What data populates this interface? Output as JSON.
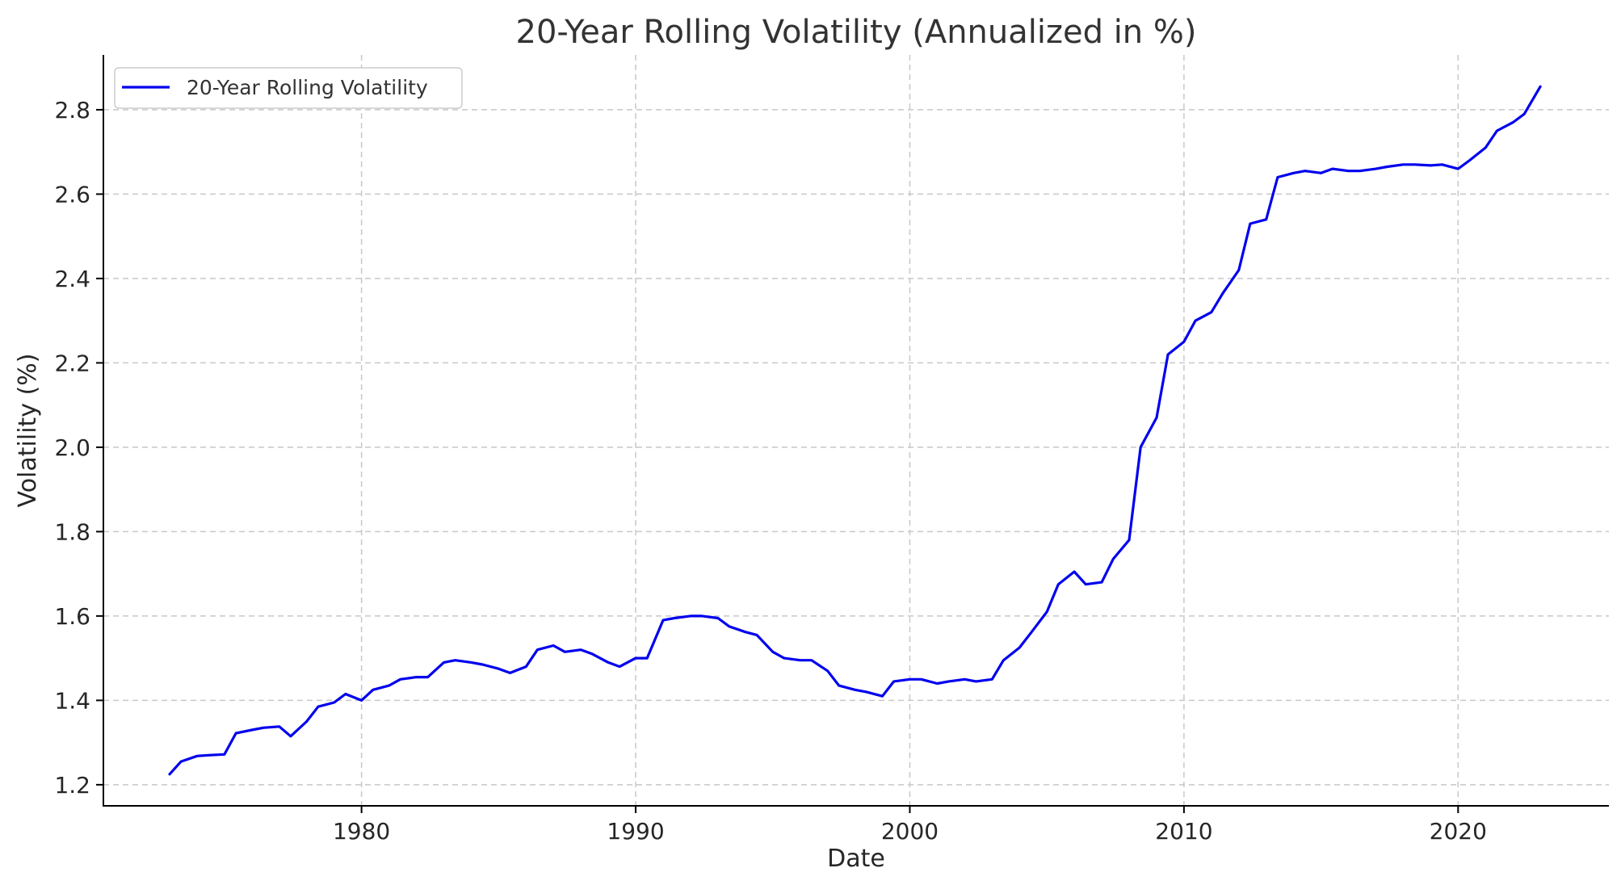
{
  "chart_data": {
    "type": "line",
    "title": "20-Year Rolling Volatility (Annualized in %)",
    "xlabel": "Date",
    "ylabel": "Volatility (%)",
    "x_ticks": [
      "1980",
      "1990",
      "2000",
      "2010",
      "2020"
    ],
    "y_ticks": [
      "1.2",
      "1.4",
      "1.6",
      "1.8",
      "2.0",
      "2.2",
      "2.4",
      "2.6",
      "2.8"
    ],
    "xlim": [
      "1970-08",
      "2025-07"
    ],
    "ylim": [
      1.15,
      2.93
    ],
    "grid": true,
    "legend_placement": "top-left",
    "colors": {
      "series": "#0000ee"
    },
    "series": [
      {
        "name": "20-Year Rolling Volatility",
        "x": [
          "1973-01",
          "1973-06",
          "1974-01",
          "1974-06",
          "1975-01",
          "1975-06",
          "1976-01",
          "1976-06",
          "1977-01",
          "1977-06",
          "1978-01",
          "1978-06",
          "1979-01",
          "1979-06",
          "1980-01",
          "1980-06",
          "1981-01",
          "1981-06",
          "1982-01",
          "1982-06",
          "1983-01",
          "1983-06",
          "1984-01",
          "1984-06",
          "1985-01",
          "1985-06",
          "1986-01",
          "1986-06",
          "1987-01",
          "1987-06",
          "1988-01",
          "1988-06",
          "1989-01",
          "1989-06",
          "1990-01",
          "1990-06",
          "1991-01",
          "1991-06",
          "1992-01",
          "1992-06",
          "1993-01",
          "1993-06",
          "1994-01",
          "1994-06",
          "1995-01",
          "1995-06",
          "1996-01",
          "1996-06",
          "1997-01",
          "1997-06",
          "1998-01",
          "1998-06",
          "1999-01",
          "1999-06",
          "2000-01",
          "2000-06",
          "2001-01",
          "2001-06",
          "2002-01",
          "2002-06",
          "2003-01",
          "2003-06",
          "2004-01",
          "2004-06",
          "2005-01",
          "2005-06",
          "2006-01",
          "2006-06",
          "2007-01",
          "2007-06",
          "2008-01",
          "2008-06",
          "2009-01",
          "2009-06",
          "2010-01",
          "2010-06",
          "2011-01",
          "2011-06",
          "2012-01",
          "2012-06",
          "2013-01",
          "2013-06",
          "2014-01",
          "2014-06",
          "2015-01",
          "2015-06",
          "2016-01",
          "2016-06",
          "2017-01",
          "2017-06",
          "2018-01",
          "2018-06",
          "2019-01",
          "2019-06",
          "2020-01",
          "2020-06",
          "2021-01",
          "2021-06",
          "2022-01",
          "2022-06",
          "2023-01"
        ],
        "values": [
          1.225,
          1.255,
          1.268,
          1.27,
          1.272,
          1.322,
          1.33,
          1.335,
          1.338,
          1.315,
          1.35,
          1.385,
          1.395,
          1.415,
          1.4,
          1.425,
          1.435,
          1.45,
          1.455,
          1.455,
          1.49,
          1.495,
          1.49,
          1.485,
          1.475,
          1.465,
          1.48,
          1.52,
          1.53,
          1.515,
          1.52,
          1.51,
          1.49,
          1.48,
          1.5,
          1.5,
          1.59,
          1.595,
          1.6,
          1.6,
          1.595,
          1.575,
          1.562,
          1.555,
          1.515,
          1.5,
          1.495,
          1.495,
          1.47,
          1.435,
          1.425,
          1.42,
          1.41,
          1.445,
          1.45,
          1.45,
          1.44,
          1.445,
          1.45,
          1.445,
          1.45,
          1.495,
          1.525,
          1.56,
          1.61,
          1.675,
          1.705,
          1.675,
          1.68,
          1.735,
          1.78,
          2.0,
          2.07,
          2.22,
          2.25,
          2.3,
          2.32,
          2.365,
          2.42,
          2.53,
          2.54,
          2.64,
          2.65,
          2.655,
          2.65,
          2.66,
          2.655,
          2.655,
          2.66,
          2.665,
          2.67,
          2.67,
          2.668,
          2.67,
          2.66,
          2.68,
          2.71,
          2.75,
          2.77,
          2.79,
          2.855
        ]
      }
    ]
  }
}
